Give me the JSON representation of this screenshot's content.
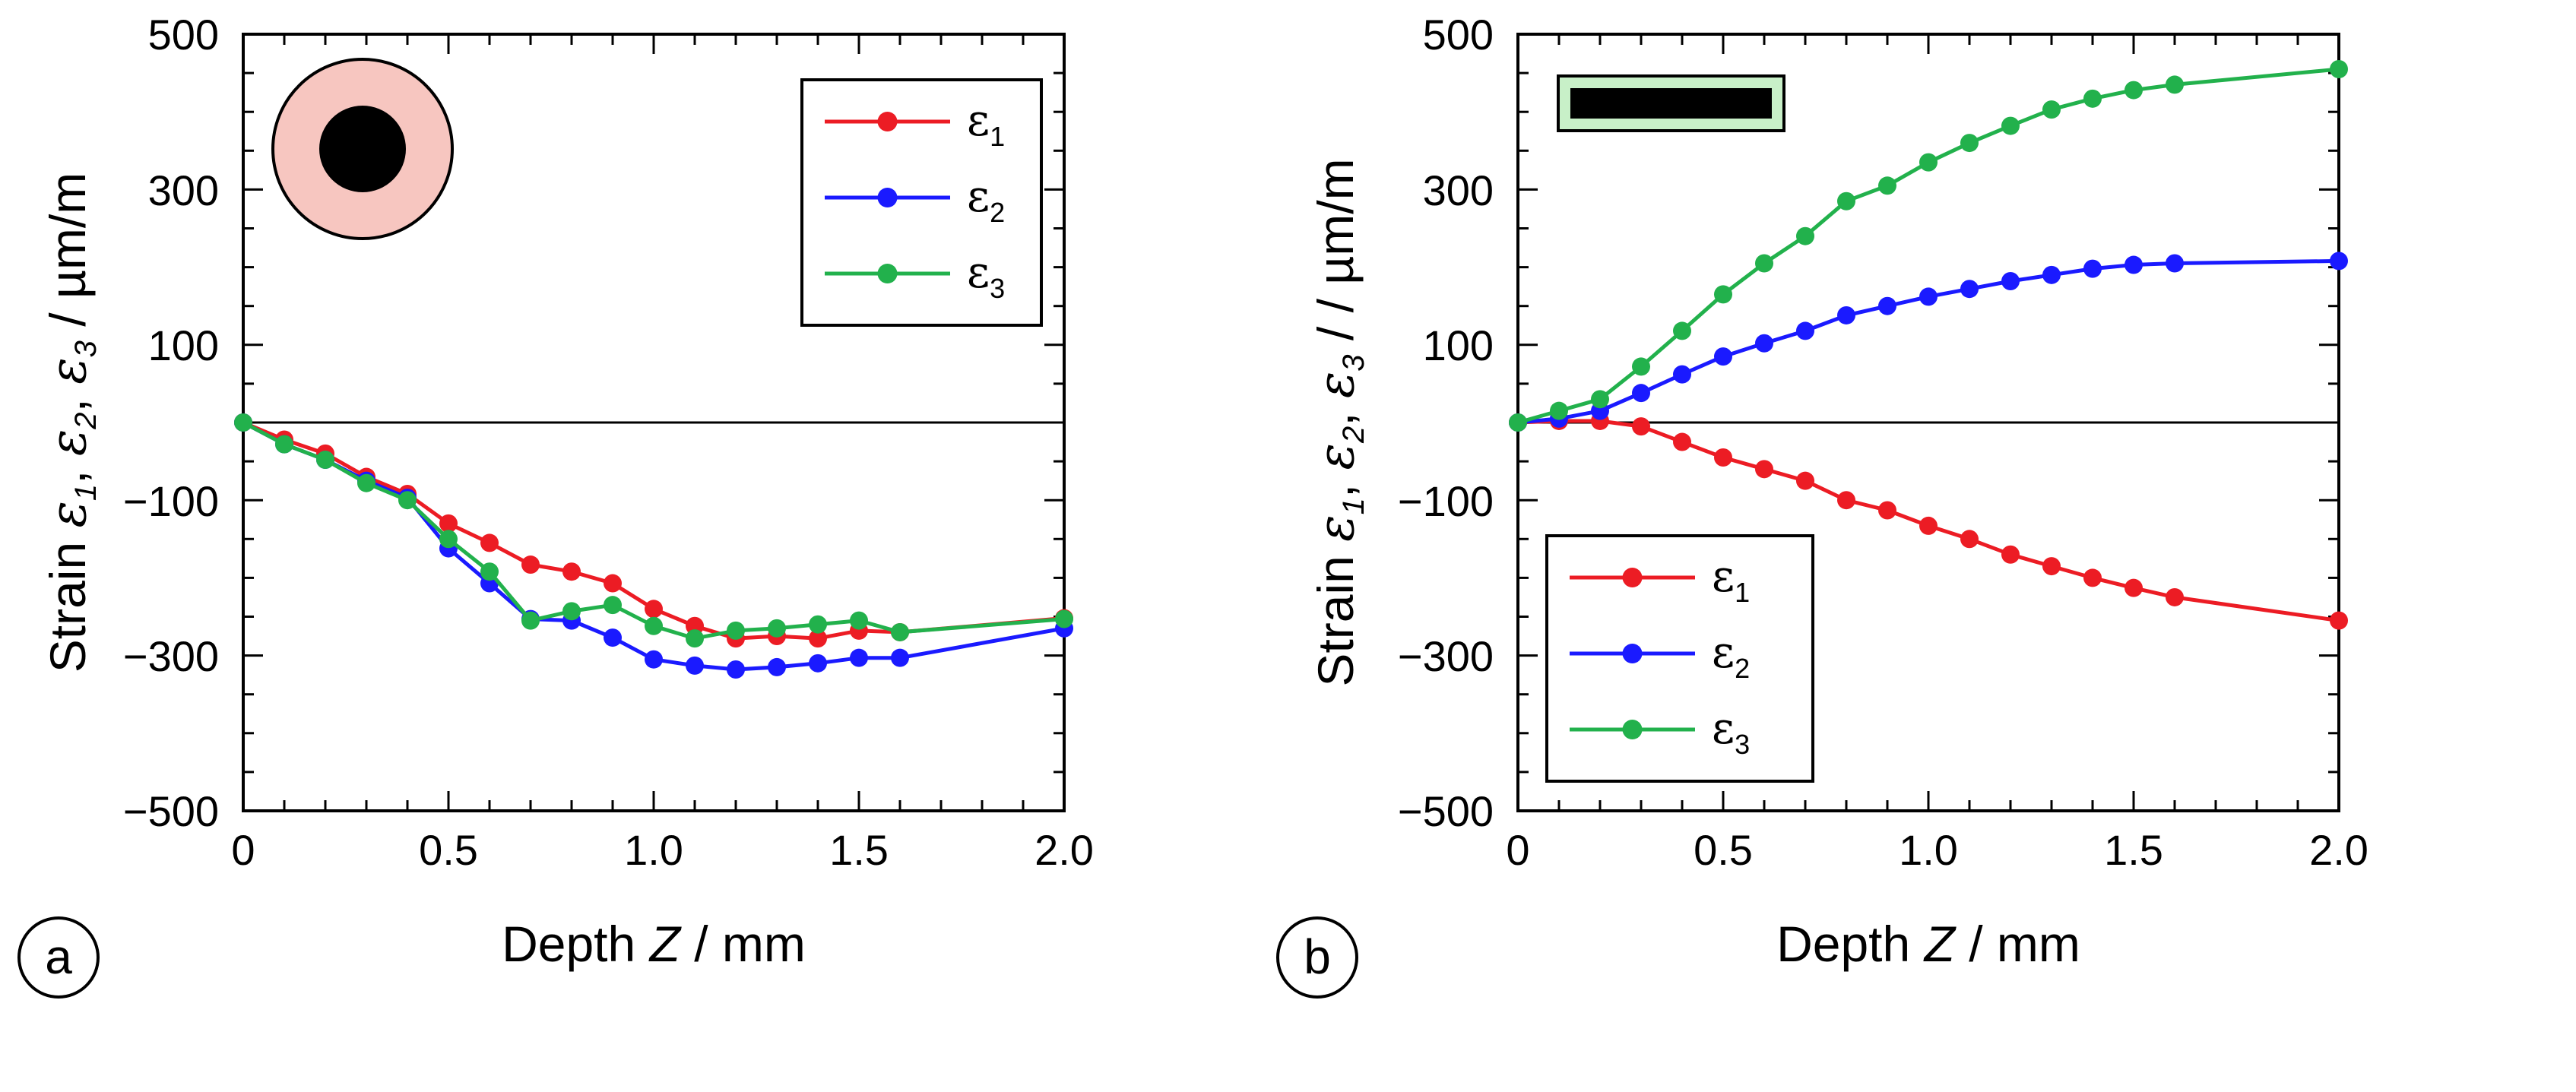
{
  "colors": {
    "eps1": "#ec1c24",
    "eps2": "#1a1aff",
    "eps3": "#22b14c"
  },
  "chart_data": [
    {
      "type": "line",
      "panel_label": "a",
      "xlabel_text": "Depth ",
      "xlabel_var": "Z",
      "xlabel_unit": " / mm",
      "ylabel_prefix": "Strain ",
      "ylabel_eps1": "ε",
      "ylabel_sub1": "1",
      "ylabel_eps2": "ε",
      "ylabel_sub2": "2",
      "ylabel_eps3": "ε",
      "ylabel_sub3": "3",
      "ylabel_unit": " / µm/m",
      "xlim": [
        0,
        2.0
      ],
      "ylim": [
        -500,
        500
      ],
      "xticks": [
        "0",
        "0.5",
        "1.0",
        "1.5",
        "2.0"
      ],
      "yticks": [
        "500",
        "300",
        "100",
        "−100",
        "−300",
        "−500"
      ],
      "legend_position": "top-right",
      "inset_icon": "circle-cross-section-icon",
      "series": [
        {
          "name": "ε1",
          "legend_eps": "ε",
          "legend_sub": "1",
          "color_key": "eps1",
          "x": [
            0,
            0.1,
            0.2,
            0.3,
            0.4,
            0.5,
            0.6,
            0.7,
            0.8,
            0.9,
            1.0,
            1.1,
            1.2,
            1.3,
            1.4,
            1.5,
            1.6,
            2.0
          ],
          "y": [
            0,
            -22,
            -40,
            -70,
            -92,
            -130,
            -155,
            -183,
            -192,
            -207,
            -240,
            -262,
            -278,
            -275,
            -278,
            -268,
            -270,
            -252
          ]
        },
        {
          "name": "ε2",
          "legend_eps": "ε",
          "legend_sub": "2",
          "color_key": "eps2",
          "x": [
            0,
            0.1,
            0.2,
            0.3,
            0.4,
            0.5,
            0.6,
            0.7,
            0.8,
            0.9,
            1.0,
            1.1,
            1.2,
            1.3,
            1.4,
            1.5,
            1.6,
            2.0
          ],
          "y": [
            0,
            -28,
            -48,
            -75,
            -97,
            -162,
            -207,
            -253,
            -255,
            -277,
            -305,
            -313,
            -318,
            -315,
            -310,
            -303,
            -303,
            -265
          ]
        },
        {
          "name": "ε3",
          "legend_eps": "ε",
          "legend_sub": "3",
          "color_key": "eps3",
          "x": [
            0,
            0.1,
            0.2,
            0.3,
            0.4,
            0.5,
            0.6,
            0.7,
            0.8,
            0.9,
            1.0,
            1.1,
            1.2,
            1.3,
            1.4,
            1.5,
            1.6,
            2.0
          ],
          "y": [
            0,
            -28,
            -48,
            -78,
            -100,
            -150,
            -192,
            -255,
            -243,
            -235,
            -262,
            -278,
            -268,
            -265,
            -260,
            -255,
            -270,
            -253
          ]
        }
      ]
    },
    {
      "type": "line",
      "panel_label": "b",
      "xlabel_text": "Depth ",
      "xlabel_var": "Z",
      "xlabel_unit": " / mm",
      "ylabel_prefix": "Strain ",
      "ylabel_eps1": "ε",
      "ylabel_sub1": "1",
      "ylabel_eps2": "ε",
      "ylabel_sub2": "2",
      "ylabel_eps3": "ε",
      "ylabel_sub3": "3",
      "ylabel_unit": " / / µm/m",
      "xlim": [
        0,
        2.0
      ],
      "ylim": [
        -500,
        500
      ],
      "xticks": [
        "0",
        "0.5",
        "1.0",
        "1.5",
        "2.0"
      ],
      "yticks": [
        "500",
        "300",
        "100",
        "−100",
        "−300",
        "−500"
      ],
      "legend_position": "bottom-left",
      "inset_icon": "bar-cross-section-icon",
      "series": [
        {
          "name": "ε1",
          "legend_eps": "ε",
          "legend_sub": "1",
          "color_key": "eps1",
          "x": [
            0,
            0.1,
            0.2,
            0.3,
            0.4,
            0.5,
            0.6,
            0.7,
            0.8,
            0.9,
            1.0,
            1.1,
            1.2,
            1.3,
            1.4,
            1.5,
            1.6,
            2.0
          ],
          "y": [
            0,
            2,
            2,
            -5,
            -25,
            -45,
            -60,
            -75,
            -100,
            -113,
            -133,
            -150,
            -170,
            -185,
            -200,
            -213,
            -225,
            -255
          ]
        },
        {
          "name": "ε2",
          "legend_eps": "ε",
          "legend_sub": "2",
          "color_key": "eps2",
          "x": [
            0,
            0.1,
            0.2,
            0.3,
            0.4,
            0.5,
            0.6,
            0.7,
            0.8,
            0.9,
            1.0,
            1.1,
            1.2,
            1.3,
            1.4,
            1.5,
            1.6,
            2.0
          ],
          "y": [
            0,
            5,
            15,
            38,
            62,
            85,
            102,
            118,
            138,
            150,
            162,
            172,
            182,
            190,
            198,
            203,
            205,
            208
          ]
        },
        {
          "name": "ε3",
          "legend_eps": "ε",
          "legend_sub": "3",
          "color_key": "eps3",
          "x": [
            0,
            0.1,
            0.2,
            0.3,
            0.4,
            0.5,
            0.6,
            0.7,
            0.8,
            0.9,
            1.0,
            1.1,
            1.2,
            1.3,
            1.4,
            1.5,
            1.6,
            2.0
          ],
          "y": [
            0,
            15,
            30,
            72,
            118,
            165,
            205,
            240,
            285,
            305,
            335,
            360,
            382,
            403,
            417,
            428,
            435,
            455
          ]
        }
      ]
    }
  ]
}
